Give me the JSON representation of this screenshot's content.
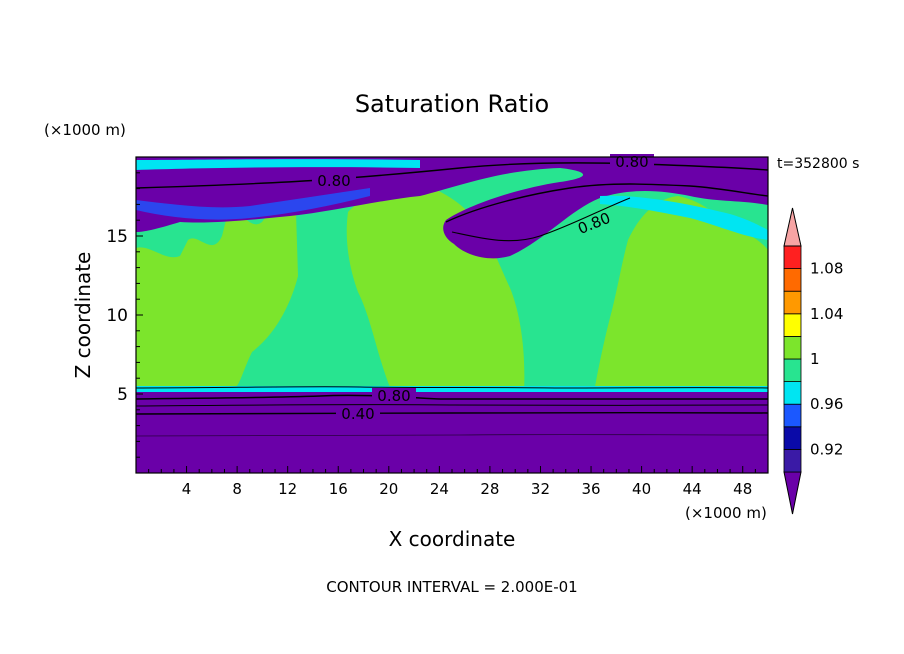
{
  "chart_data": {
    "type": "heatmap",
    "title": "Saturation Ratio",
    "xlabel": "X coordinate",
    "ylabel": "Z coordinate",
    "x_unit": "(×1000 m)",
    "y_unit": "(×1000 m)",
    "time_label": "t=352800 s",
    "footer": "CONTOUR INTERVAL = 2.000E-01",
    "xlim": [
      0,
      50
    ],
    "ylim": [
      0,
      20
    ],
    "x_ticks": [
      4,
      8,
      12,
      16,
      20,
      24,
      28,
      32,
      36,
      40,
      44,
      48
    ],
    "y_ticks": [
      5,
      10,
      15
    ],
    "colorbar": {
      "colors": [
        "#6a00a8",
        "#3a1aa6",
        "#0a0aa8",
        "#1b58ff",
        "#00e5f2",
        "#28e490",
        "#7ce52c",
        "#ffff00",
        "#ff9900",
        "#ff6a00",
        "#ff2020",
        "#f7a4a4"
      ],
      "tick_labels": [
        "0.92",
        "0.96",
        "1",
        "1.04",
        "1.08"
      ]
    },
    "contour_labels": [
      "0.80",
      "0.80",
      "0.80",
      "0.80",
      "0.40"
    ]
  }
}
